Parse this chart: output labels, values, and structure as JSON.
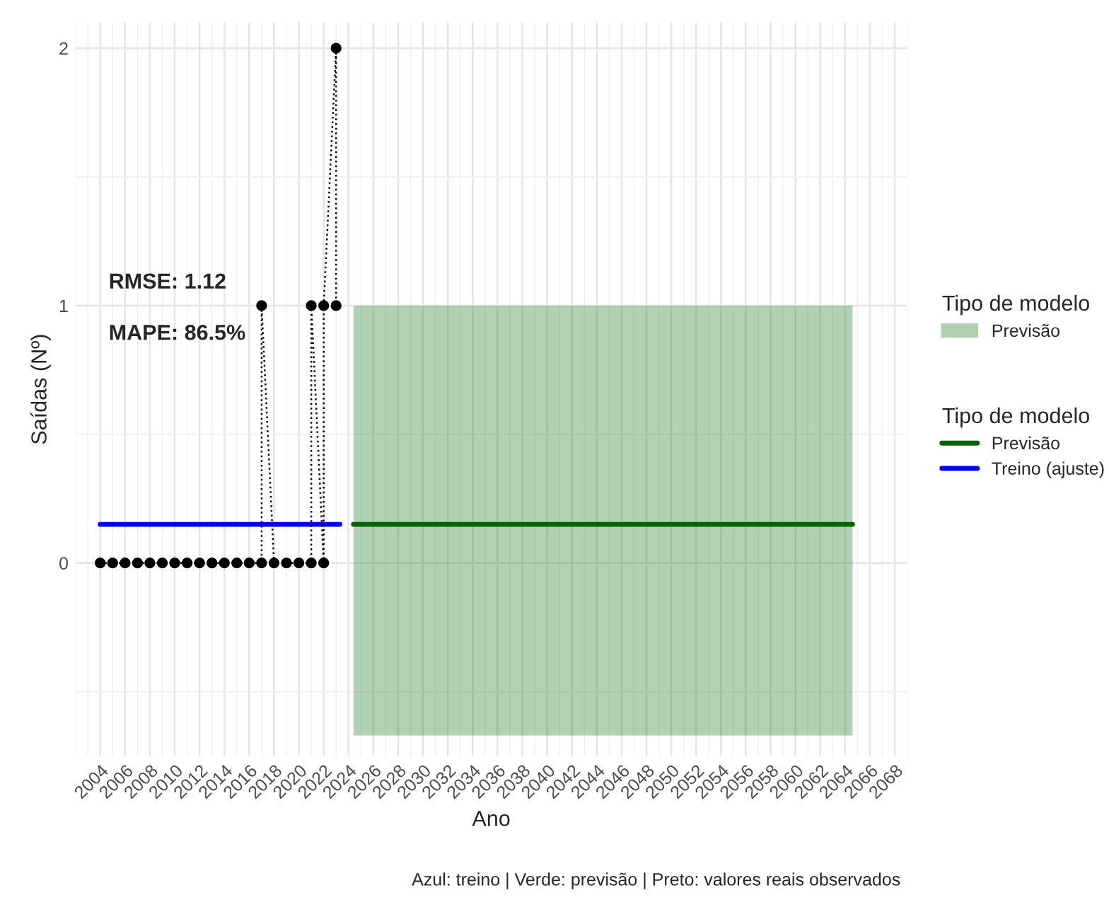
{
  "chart_data": {
    "type": "line",
    "xlabel": "Ano",
    "ylabel": "Saídas (Nº)",
    "legend_title": "Tipo de modelo",
    "annotations": [
      "RMSE: 1.12",
      "MAPE: 86.5%",
      "Azul: treino | Verde: previsão | Preto: valores reais observados"
    ],
    "xlim": [
      2002,
      2069
    ],
    "ylim": [
      -0.75,
      2.1
    ],
    "xticks": [
      2004,
      2006,
      2008,
      2010,
      2012,
      2014,
      2016,
      2018,
      2020,
      2022,
      2024,
      2026,
      2028,
      2030,
      2032,
      2034,
      2036,
      2038,
      2040,
      2042,
      2044,
      2046,
      2048,
      2050,
      2052,
      2054,
      2056,
      2058,
      2060,
      2062,
      2064,
      2066,
      2068
    ],
    "yticks": [
      0,
      1,
      2
    ],
    "grid": true,
    "legend": "right",
    "series": [
      {
        "name": "Previsão",
        "color": "#006400",
        "x": [
          2024.4,
          2064.6
        ],
        "values": [
          0.15,
          0.15
        ],
        "lower": [
          -0.67,
          -0.67
        ],
        "upper": [
          1.0,
          1.0
        ],
        "line_style": "solid",
        "marker": "none"
      },
      {
        "name": "Treino (ajuste)",
        "color": "#0000ff",
        "x": [
          2004,
          2023.3
        ],
        "values": [
          0.15,
          0.15
        ],
        "line_style": "solid",
        "marker": "none"
      },
      {
        "color": "#000000",
        "line_style": "dotted",
        "marker": "circle",
        "x": [
          2004,
          2005,
          2006,
          2007,
          2008,
          2009,
          2010,
          2011,
          2012,
          2013,
          2014,
          2015,
          2016,
          2017,
          2017,
          2018,
          2019,
          2020,
          2021,
          2021,
          2022,
          2022,
          2023,
          2023
        ],
        "values": [
          0,
          0,
          0,
          0,
          0,
          0,
          0,
          0,
          0,
          0,
          0,
          0,
          0,
          0,
          1,
          0,
          0,
          0,
          0,
          1,
          0,
          1,
          2,
          1
        ]
      }
    ]
  }
}
